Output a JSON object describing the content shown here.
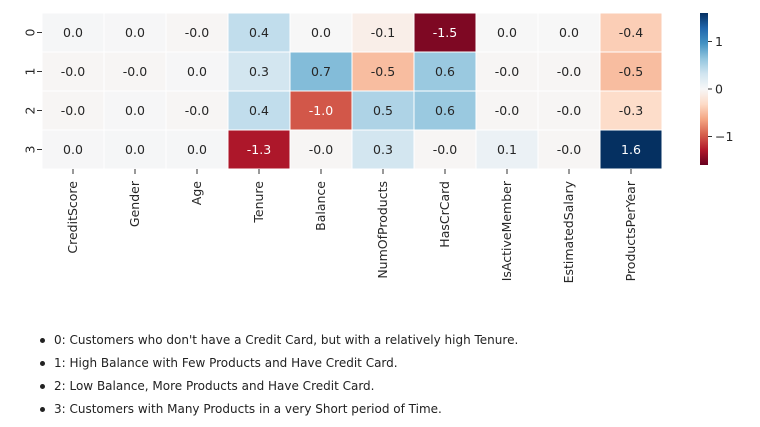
{
  "chart_data": {
    "type": "heatmap",
    "columns": [
      "CreditScore",
      "Gender",
      "Age",
      "Tenure",
      "Balance",
      "NumOfProducts",
      "HasCrCard",
      "IsActiveMember",
      "EstimatedSalary",
      "ProductsPerYear"
    ],
    "rows": [
      "0",
      "1",
      "2",
      "3"
    ],
    "values": [
      [
        0.02,
        0.01,
        -0.02,
        0.4,
        0.0,
        -0.1,
        -1.5,
        0.0,
        0.0,
        -0.4
      ],
      [
        -0.02,
        -0.02,
        0.01,
        0.3,
        0.7,
        -0.5,
        0.6,
        -0.02,
        -0.02,
        -0.5
      ],
      [
        -0.02,
        0.01,
        -0.02,
        0.4,
        -1.0,
        0.5,
        0.6,
        -0.02,
        -0.02,
        -0.3
      ],
      [
        0.01,
        0.02,
        0.02,
        -1.3,
        -0.02,
        0.3,
        -0.02,
        0.1,
        -0.02,
        1.6
      ]
    ],
    "labels": [
      [
        "0.0",
        "0.0",
        "-0.0",
        "0.4",
        "0.0",
        "-0.1",
        "-1.5",
        "0.0",
        "0.0",
        "-0.4"
      ],
      [
        "-0.0",
        "-0.0",
        "0.0",
        "0.3",
        "0.7",
        "-0.5",
        "0.6",
        "-0.0",
        "-0.0",
        "-0.5"
      ],
      [
        "-0.0",
        "0.0",
        "-0.0",
        "0.4",
        "-1.0",
        "0.5",
        "0.6",
        "-0.0",
        "-0.0",
        "-0.3"
      ],
      [
        "0.0",
        "0.0",
        "0.0",
        "-1.3",
        "-0.0",
        "0.3",
        "-0.0",
        "0.1",
        "-0.0",
        "1.6"
      ]
    ],
    "colorscale": "RdBu",
    "vmin": -1.6,
    "vmax": 1.6,
    "colorbar_ticks": [
      1,
      0,
      -1
    ],
    "colorbar_tick_labels": [
      "1",
      "0",
      "−1"
    ],
    "annotations": [
      "0: Customers who don't have a Credit Card, but with a relatively high Tenure.",
      "1: High Balance with Few Products and Have Credit Card.",
      "2: Low Balance, More Products and Have Credit Card.",
      "3: Customers with Many Products in a very Short period of Time."
    ]
  }
}
